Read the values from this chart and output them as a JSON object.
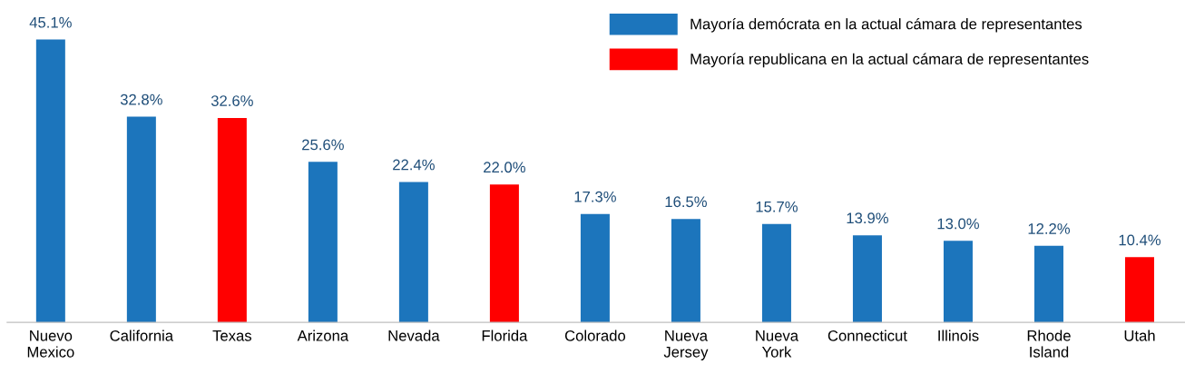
{
  "chart_data": {
    "type": "bar",
    "categories": [
      "Nuevo\nMexico",
      "California",
      "Texas",
      "Arizona",
      "Nevada",
      "Florida",
      "Colorado",
      "Nueva\nJersey",
      "Nueva\nYork",
      "Connecticut",
      "Illinois",
      "Rhode\nIsland",
      "Utah"
    ],
    "series": [
      {
        "name": "Mayoría demócrata en la actual cámara de representantes",
        "color": "#1c75bc",
        "values": [
          45.1,
          32.8,
          null,
          25.6,
          22.4,
          null,
          17.3,
          16.5,
          15.7,
          13.9,
          13.0,
          12.2,
          null
        ],
        "value_labels": [
          "45.1%",
          "32.8%",
          null,
          "25.6%",
          "22.4%",
          null,
          "17.3%",
          "16.5%",
          "15.7%",
          "13.9%",
          "13.0%",
          "12.2%",
          null
        ]
      },
      {
        "name": "Mayoría republicana en la actual cámara de representantes",
        "color": "#ff0000",
        "values": [
          null,
          null,
          32.6,
          null,
          null,
          22.0,
          null,
          null,
          null,
          null,
          null,
          null,
          10.4
        ],
        "value_labels": [
          null,
          null,
          "32.6%",
          null,
          null,
          "22.0%",
          null,
          null,
          null,
          null,
          null,
          null,
          "10.4%"
        ]
      }
    ],
    "legend": "top right",
    "grid": false,
    "tick_labels": "x"
  }
}
